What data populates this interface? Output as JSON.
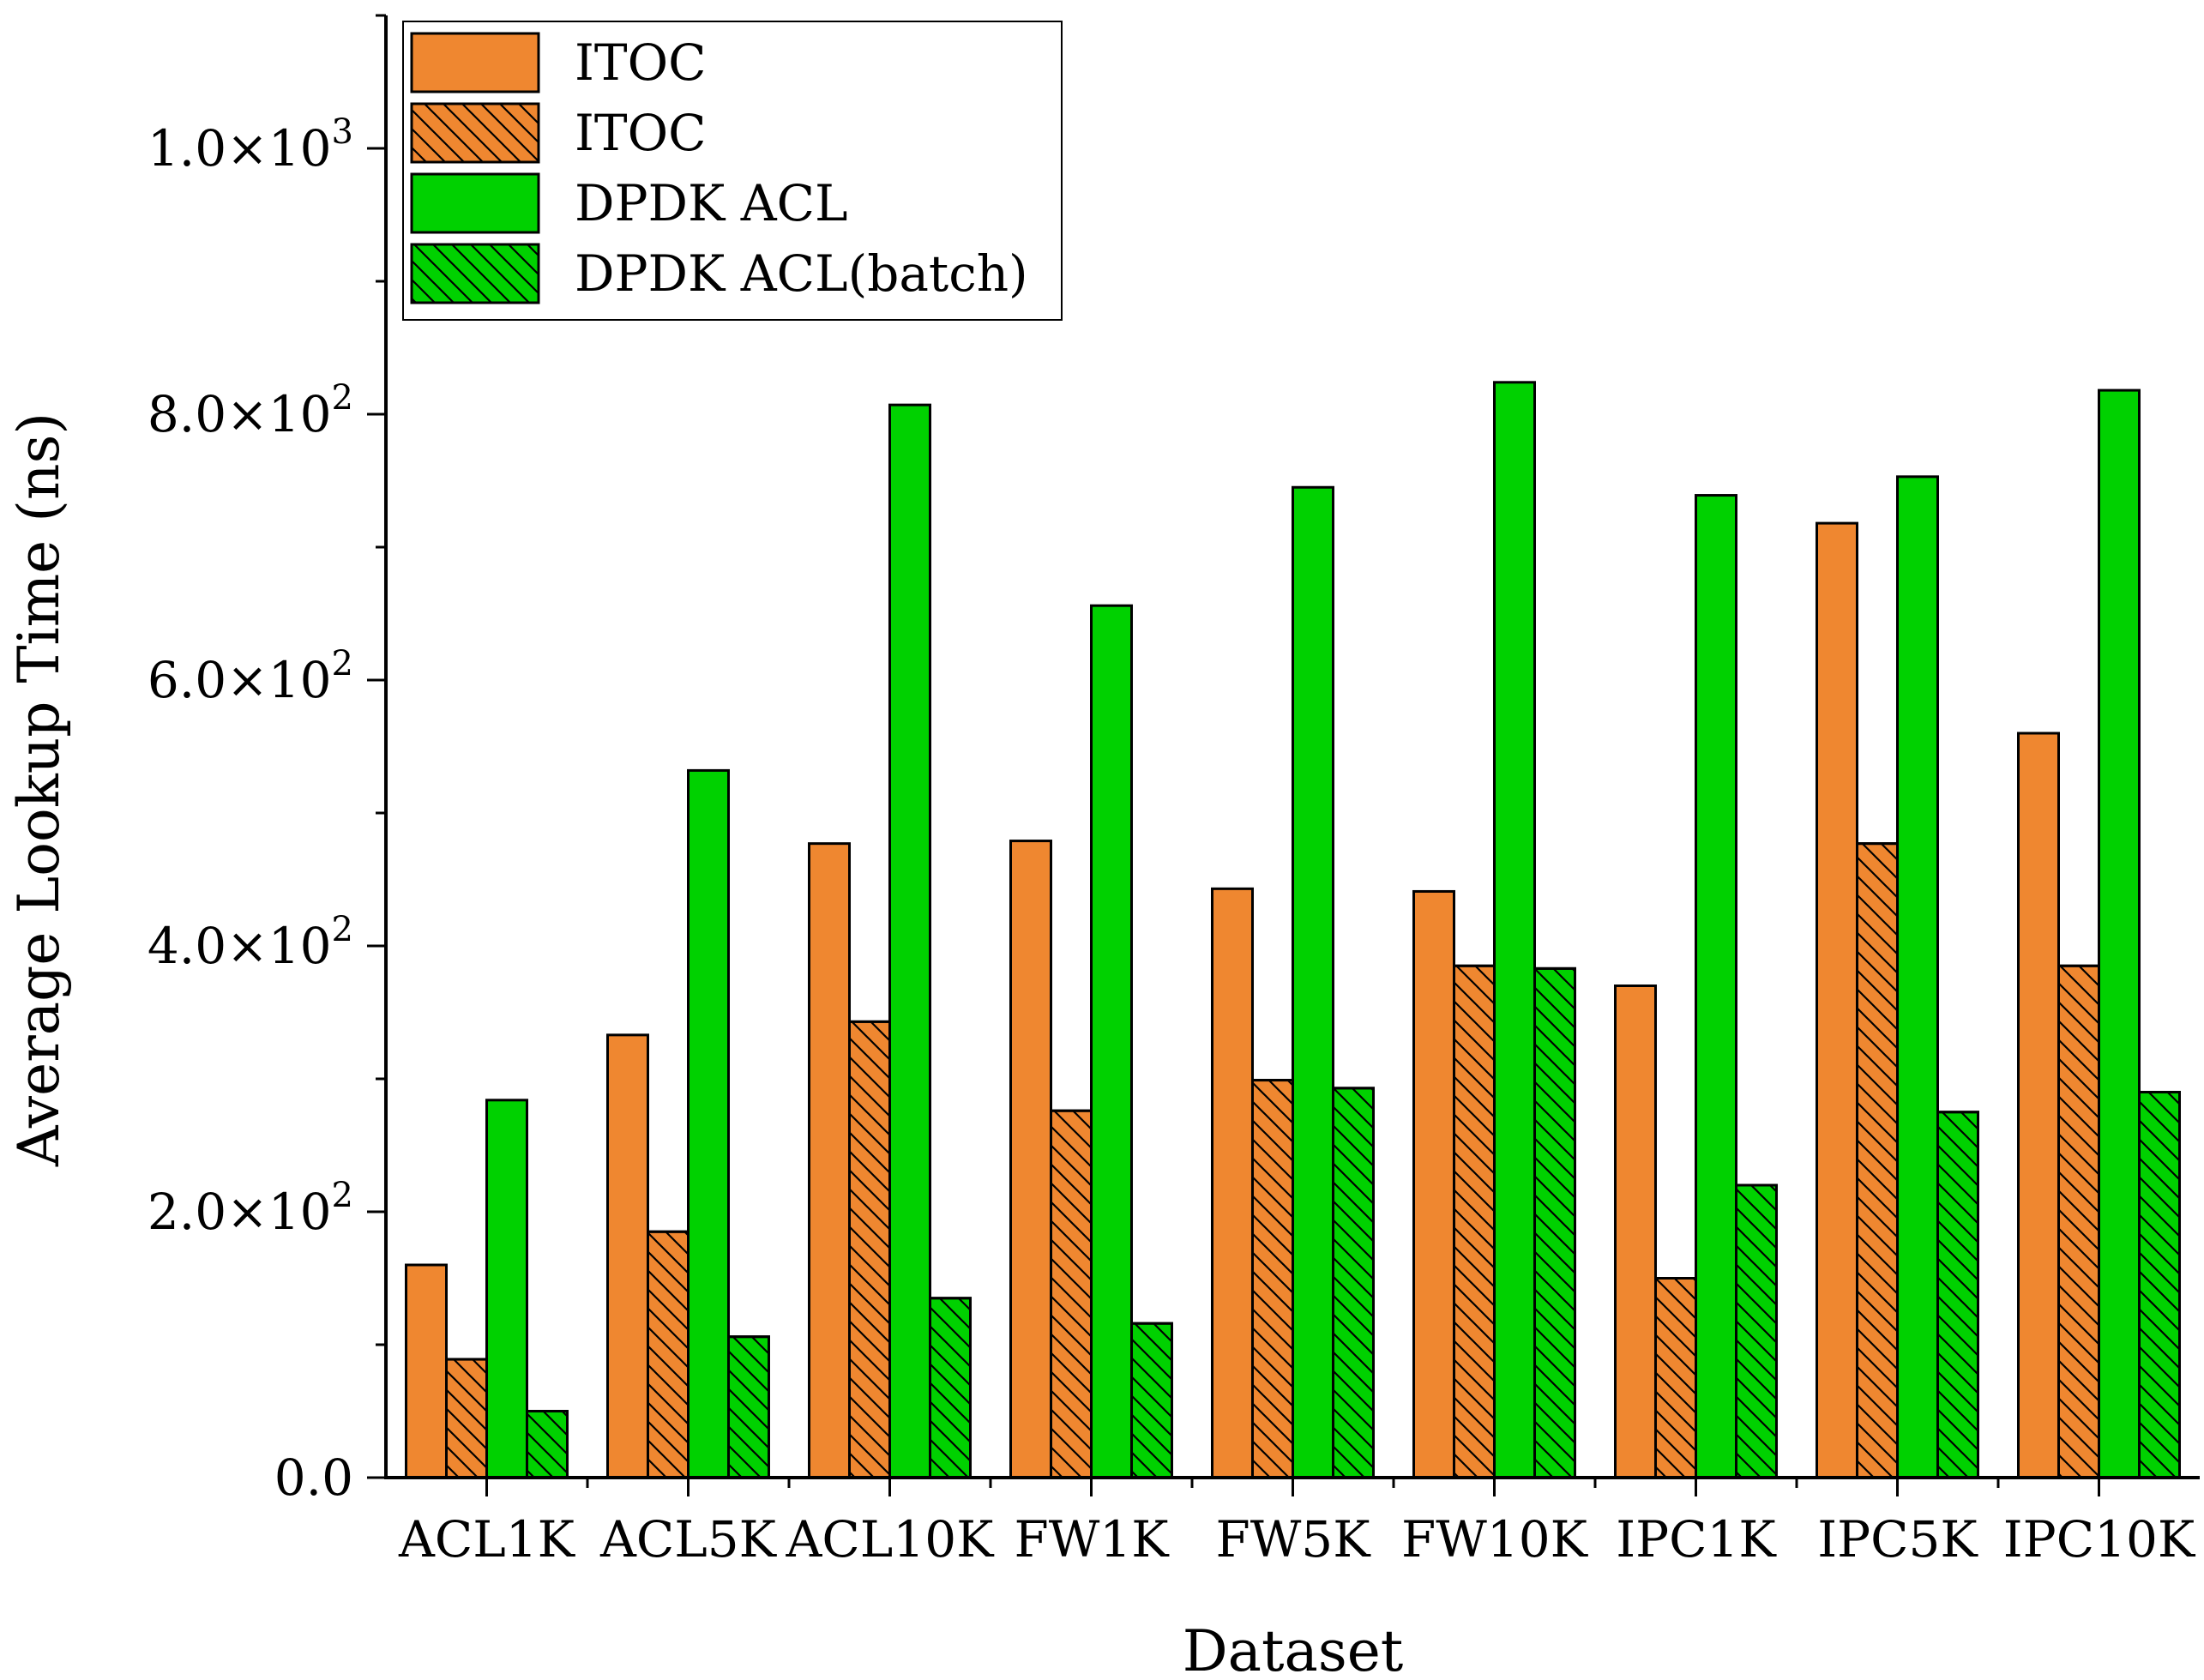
{
  "chart_data": {
    "type": "bar",
    "title": "",
    "xlabel": "Dataset",
    "ylabel": "Average Lookup Time (ns)",
    "categories": [
      "ACL1K",
      "ACL5K",
      "ACL10K",
      "FW1K",
      "FW5K",
      "FW10K",
      "IPC1K",
      "IPC5K",
      "IPC10K"
    ],
    "series": [
      {
        "name": "ITOC",
        "pattern": "solid",
        "color": "#ef8730",
        "values": [
          160,
          333,
          477,
          479,
          443,
          441,
          370,
          718,
          560
        ]
      },
      {
        "name": "ITOC",
        "pattern": "hatched",
        "color": "#ef8730",
        "values": [
          89,
          185,
          343,
          276,
          299,
          385,
          150,
          477,
          385
        ]
      },
      {
        "name": "DPDK ACL",
        "pattern": "solid",
        "color": "#00d100",
        "values": [
          284,
          532,
          807,
          656,
          745,
          824,
          739,
          753,
          818
        ]
      },
      {
        "name": "DPDK ACL(batch)",
        "pattern": "hatched",
        "color": "#00d100",
        "values": [
          50,
          106,
          135,
          116,
          293,
          383,
          220,
          275,
          290
        ]
      }
    ],
    "ylim": [
      0,
      1100
    ],
    "yticks": [
      {
        "value": 0,
        "mantissa": "0.0",
        "exponent": ""
      },
      {
        "value": 200,
        "mantissa": "2.0",
        "exponent": "2"
      },
      {
        "value": 400,
        "mantissa": "4.0",
        "exponent": "2"
      },
      {
        "value": 600,
        "mantissa": "6.0",
        "exponent": "2"
      },
      {
        "value": 800,
        "mantissa": "8.0",
        "exponent": "2"
      },
      {
        "value": 1000,
        "mantissa": "1.0",
        "exponent": "3"
      }
    ],
    "y_tick_times": "×10",
    "y_minor_step": 100,
    "grid": false,
    "legend": "top-left"
  }
}
